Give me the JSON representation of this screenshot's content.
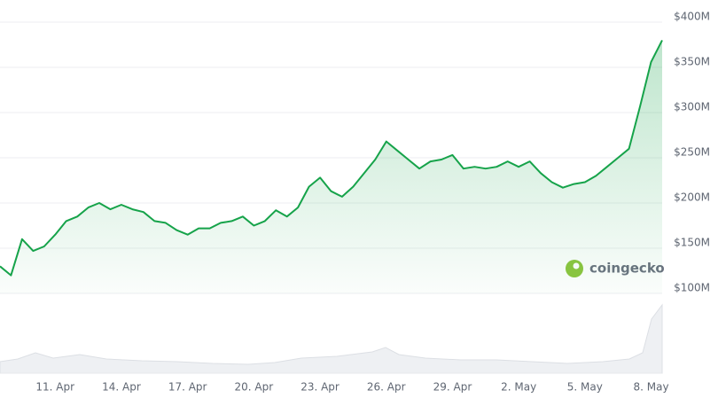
{
  "chart_data": {
    "type": "area-line",
    "color": "#16a34a",
    "watermark": "coingecko",
    "grid": true,
    "categories": [
      null,
      null,
      null,
      null,
      null,
      "11. Apr",
      null,
      null,
      null,
      null,
      null,
      "14. Apr",
      null,
      null,
      null,
      null,
      null,
      "17. Apr",
      null,
      null,
      null,
      null,
      null,
      "20. Apr",
      null,
      null,
      null,
      null,
      null,
      "23. Apr",
      null,
      null,
      null,
      null,
      null,
      "26. Apr",
      null,
      null,
      null,
      null,
      null,
      "29. Apr",
      null,
      null,
      null,
      null,
      null,
      "2. May",
      null,
      null,
      null,
      null,
      null,
      "5. May",
      null,
      null,
      null,
      null,
      null,
      "8. May",
      null
    ],
    "values": [
      130000000,
      120000000,
      160000000,
      147000000,
      152000000,
      165000000,
      180000000,
      185000000,
      195000000,
      200000000,
      193000000,
      198000000,
      193000000,
      190000000,
      180000000,
      178000000,
      170000000,
      165000000,
      172000000,
      172000000,
      178000000,
      180000000,
      185000000,
      175000000,
      180000000,
      192000000,
      185000000,
      195000000,
      218000000,
      228000000,
      213000000,
      207000000,
      218000000,
      233000000,
      248000000,
      268000000,
      258000000,
      248000000,
      238000000,
      246000000,
      248000000,
      253000000,
      238000000,
      240000000,
      238000000,
      240000000,
      246000000,
      240000000,
      246000000,
      233000000,
      223000000,
      217000000,
      221000000,
      223000000,
      230000000,
      240000000,
      250000000,
      260000000,
      307000000,
      356000000,
      380000000
    ],
    "ylim": [
      100000000,
      400000000
    ],
    "yticks": [
      {
        "value": 100000000,
        "label": "$100M"
      },
      {
        "value": 150000000,
        "label": "$150M"
      },
      {
        "value": 200000000,
        "label": "$200M"
      },
      {
        "value": 250000000,
        "label": "$250M"
      },
      {
        "value": 300000000,
        "label": "$300M"
      },
      {
        "value": 350000000,
        "label": "$350M"
      },
      {
        "value": 400000000,
        "label": "$400M"
      }
    ]
  }
}
